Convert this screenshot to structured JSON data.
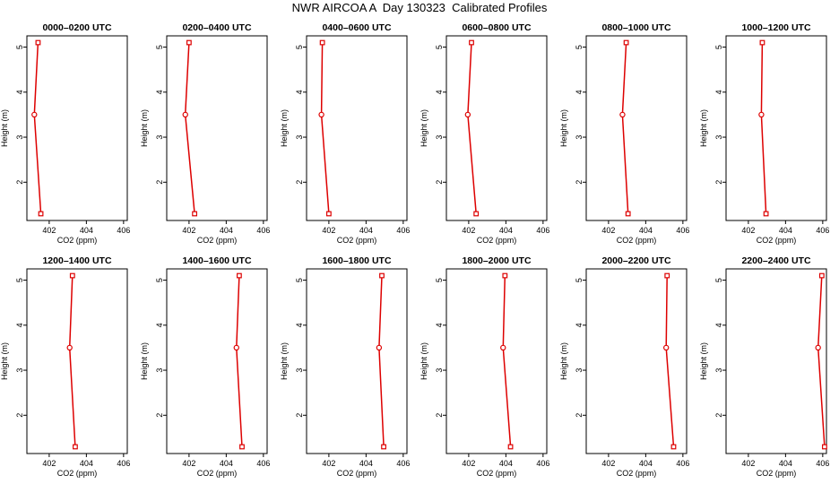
{
  "title": "NWR AIRCOA A  Day 130323  Calibrated Profiles",
  "colors": {
    "profile": "#dd0000",
    "axis": "#000000"
  },
  "axes": {
    "xlabel": "CO2 (ppm)",
    "ylabel": "Height (m)",
    "xlim": [
      400.8,
      406.2
    ],
    "ylim": [
      1.15,
      5.25
    ],
    "xticks": [
      402,
      404,
      406
    ],
    "yticks": [
      2,
      3,
      4,
      5
    ]
  },
  "chart_data": [
    {
      "type": "line",
      "title": "0000–0200 UTC",
      "x": [
        401.55,
        401.2,
        401.4
      ],
      "y": [
        1.3,
        3.5,
        5.1
      ]
    },
    {
      "type": "line",
      "title": "0200–0400 UTC",
      "x": [
        402.3,
        401.8,
        402.0
      ],
      "y": [
        1.3,
        3.5,
        5.1
      ]
    },
    {
      "type": "line",
      "title": "0400–0600 UTC",
      "x": [
        402.0,
        401.6,
        401.65
      ],
      "y": [
        1.3,
        3.5,
        5.1
      ]
    },
    {
      "type": "line",
      "title": "0600–0800 UTC",
      "x": [
        402.4,
        401.95,
        402.15
      ],
      "y": [
        1.3,
        3.5,
        5.1
      ]
    },
    {
      "type": "line",
      "title": "0800–1000 UTC",
      "x": [
        403.05,
        402.75,
        402.95
      ],
      "y": [
        1.3,
        3.5,
        5.1
      ]
    },
    {
      "type": "line",
      "title": "1000–1200 UTC",
      "x": [
        402.95,
        402.7,
        402.75
      ],
      "y": [
        1.3,
        3.5,
        5.1
      ]
    },
    {
      "type": "line",
      "title": "1200–1400 UTC",
      "x": [
        403.4,
        403.1,
        403.25
      ],
      "y": [
        1.3,
        3.5,
        5.1
      ]
    },
    {
      "type": "line",
      "title": "1400–1600 UTC",
      "x": [
        404.85,
        404.55,
        404.7
      ],
      "y": [
        1.3,
        3.5,
        5.1
      ]
    },
    {
      "type": "line",
      "title": "1600–1800 UTC",
      "x": [
        404.95,
        404.7,
        404.85
      ],
      "y": [
        1.3,
        3.5,
        5.1
      ]
    },
    {
      "type": "line",
      "title": "1800–2000 UTC",
      "x": [
        404.25,
        403.85,
        403.95
      ],
      "y": [
        1.3,
        3.5,
        5.1
      ]
    },
    {
      "type": "line",
      "title": "2000–2200 UTC",
      "x": [
        405.5,
        405.1,
        405.15
      ],
      "y": [
        1.3,
        3.5,
        5.1
      ]
    },
    {
      "type": "line",
      "title": "2200–2400 UTC",
      "x": [
        406.1,
        405.75,
        405.95
      ],
      "y": [
        1.3,
        3.5,
        5.1
      ]
    }
  ]
}
